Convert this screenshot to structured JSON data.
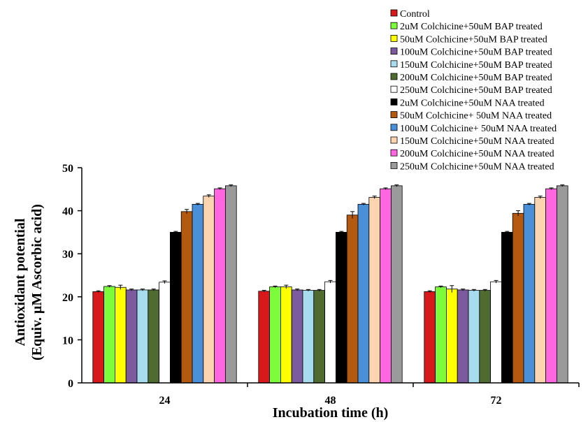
{
  "chart_data": {
    "type": "bar",
    "xlabel": "Incubation time (h)",
    "ylabel_line1": "Antioxidant  potential",
    "ylabel_line2": "(Equiv. µM Ascorbic acid)",
    "ylim": [
      0,
      50
    ],
    "yticks": [
      0,
      10,
      20,
      30,
      40,
      50
    ],
    "categories": [
      "24",
      "48",
      "72"
    ],
    "legend_position": "top-right",
    "error_bars": true,
    "series": [
      {
        "name": "Control",
        "color": "#d7191c",
        "values": [
          21.2,
          21.3,
          21.2
        ],
        "errors": [
          0.2,
          0.2,
          0.2
        ]
      },
      {
        "name": "2uM Colchicine+50uM BAP treated",
        "color": "#7cfc3a",
        "values": [
          22.4,
          22.3,
          22.3
        ],
        "errors": [
          0.2,
          0.2,
          0.2
        ]
      },
      {
        "name": "50uM Colchicine+50uM BAP treated",
        "color": "#ffff00",
        "values": [
          22.2,
          22.3,
          21.8
        ],
        "errors": [
          0.5,
          0.4,
          0.8
        ]
      },
      {
        "name": "100uM Colchicine+50uM BAP treated",
        "color": "#7b5a9e",
        "values": [
          21.6,
          21.6,
          21.6
        ],
        "errors": [
          0.2,
          0.2,
          0.2
        ]
      },
      {
        "name": "150uM Colchicine+50uM BAP treated",
        "color": "#a6dced",
        "values": [
          21.6,
          21.5,
          21.5
        ],
        "errors": [
          0.2,
          0.2,
          0.2
        ]
      },
      {
        "name": "200uM Colchicine+50uM BAP treated",
        "color": "#4f6b2f",
        "values": [
          21.6,
          21.5,
          21.5
        ],
        "errors": [
          0.2,
          0.2,
          0.2
        ]
      },
      {
        "name": "250uM Colchicine+50uM BAP treated",
        "color": "#ffffff",
        "values": [
          23.4,
          23.5,
          23.5
        ],
        "errors": [
          0.3,
          0.3,
          0.3
        ]
      },
      {
        "name": "2uM Colchicine+50uM NAA treated",
        "color": "#000000",
        "values": [
          35.0,
          35.0,
          35.0
        ],
        "errors": [
          0.2,
          0.2,
          0.2
        ]
      },
      {
        "name": "50uM Colchicine+ 50uM NAA treated",
        "color": "#b35a10",
        "values": [
          39.8,
          39.0,
          39.4
        ],
        "errors": [
          0.5,
          0.8,
          0.6
        ]
      },
      {
        "name": "100uM Colchicine+ 50uM NAA treated",
        "color": "#4a90d9",
        "values": [
          41.5,
          41.5,
          41.5
        ],
        "errors": [
          0.2,
          0.2,
          0.2
        ]
      },
      {
        "name": "150uM Colchicine+50uM NAA treated",
        "color": "#fcd5b0",
        "values": [
          43.4,
          43.1,
          43.1
        ],
        "errors": [
          0.3,
          0.3,
          0.3
        ]
      },
      {
        "name": "200uM Colchicine+50uM NAA treated",
        "color": "#ff66e0",
        "values": [
          45.1,
          45.1,
          45.1
        ],
        "errors": [
          0.2,
          0.2,
          0.2
        ]
      },
      {
        "name": "250uM Colchicine+50uM NAA treated",
        "color": "#9a9a9a",
        "values": [
          45.8,
          45.8,
          45.8
        ],
        "errors": [
          0.2,
          0.2,
          0.2
        ]
      }
    ]
  }
}
